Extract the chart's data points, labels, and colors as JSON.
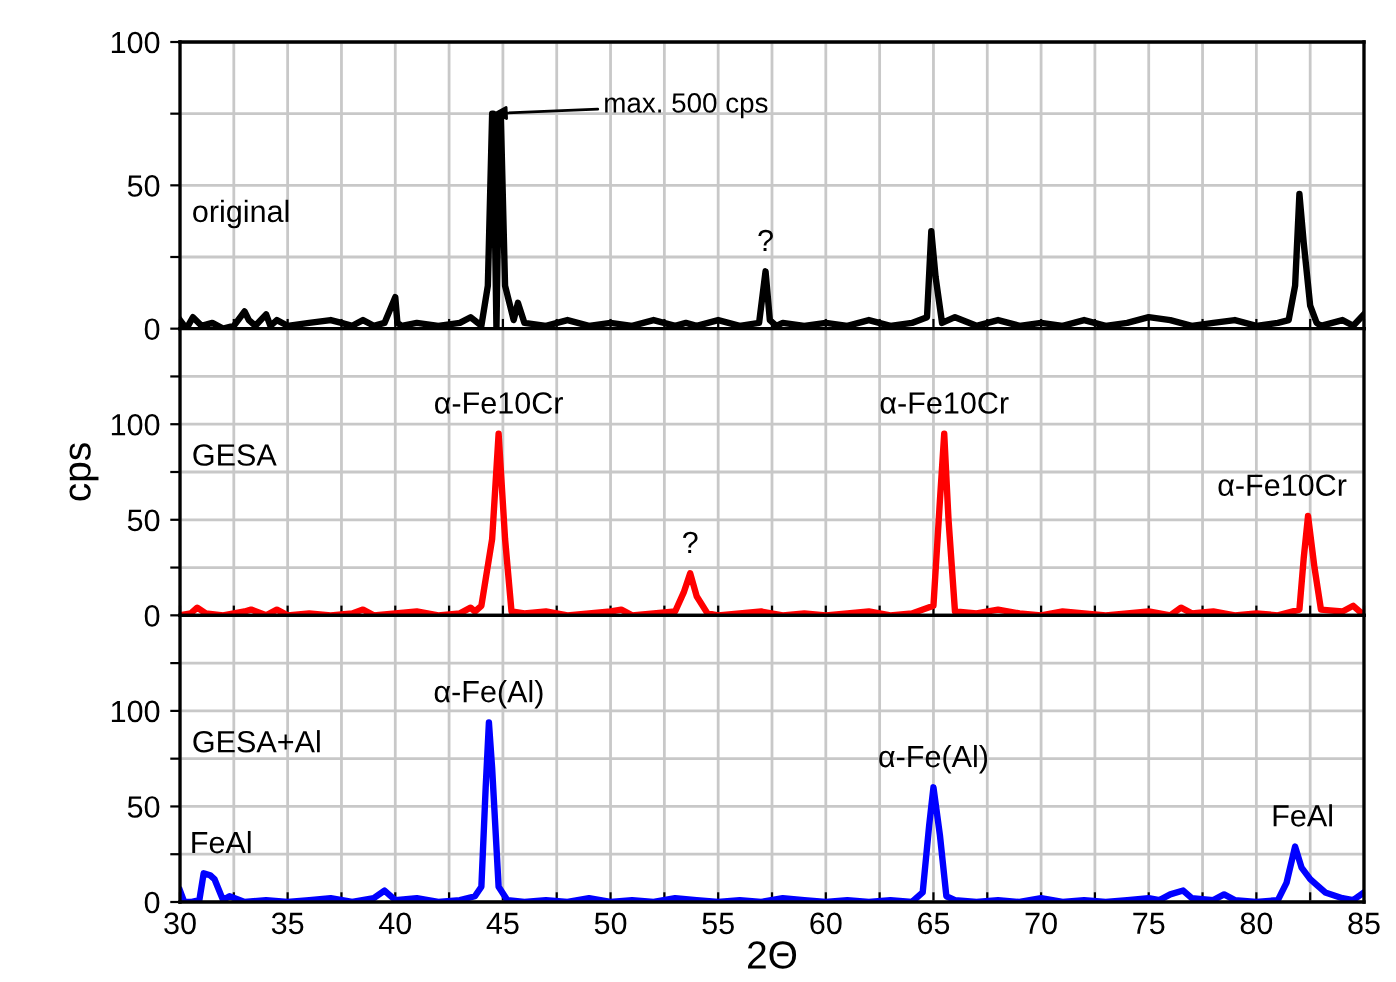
{
  "chart_data": [
    {
      "type": "line",
      "xlim": [
        30,
        85
      ],
      "ylim": [
        0,
        100
      ],
      "yticks": [
        0,
        {
          "value": 25,
          "label": null
        },
        50,
        {
          "value": 75,
          "label": null
        },
        100
      ],
      "xticks": [
        30,
        {
          "value": 32.5,
          "label": null
        },
        35,
        {
          "value": 37.5,
          "label": null
        },
        40,
        {
          "value": 42.5,
          "label": null
        },
        45,
        {
          "value": 47.5,
          "label": null
        },
        50,
        {
          "value": 52.5,
          "label": null
        },
        55,
        {
          "value": 57.5,
          "label": null
        },
        60,
        {
          "value": 62.5,
          "label": null
        },
        65,
        {
          "value": 67.5,
          "label": null
        },
        70,
        {
          "value": 72.5,
          "label": null
        },
        75,
        {
          "value": 77.5,
          "label": null
        },
        80,
        {
          "value": 82.5,
          "label": null
        },
        85
      ],
      "tick_labels": "y",
      "grid": true,
      "series": [
        {
          "name": "original",
          "color": "#000000",
          "x": [
            30,
            30.3,
            30.6,
            31,
            31.5,
            32,
            32.5,
            33,
            33.2,
            33.5,
            34,
            34.2,
            34.5,
            35,
            36,
            37,
            37.5,
            38,
            38.5,
            39,
            39.5,
            40,
            40.1,
            40.3,
            41,
            42,
            43,
            43.5,
            44,
            44.3,
            44.5,
            44.55,
            44.7,
            44.85,
            44.9,
            45.1,
            45.5,
            45.7,
            46,
            47,
            48,
            49,
            50,
            51,
            52,
            53,
            53.5,
            54,
            55,
            56,
            56.9,
            57.2,
            57.4,
            57.7,
            58,
            59,
            60,
            61,
            62,
            63,
            64,
            64.7,
            64.9,
            65.1,
            65.4,
            66,
            67,
            68,
            69,
            70,
            71,
            72,
            73,
            74,
            75,
            76,
            77,
            78,
            79,
            80,
            81,
            81.5,
            81.8,
            82.0,
            82.2,
            82.5,
            82.8,
            83,
            84,
            84.5,
            85
          ],
          "values": [
            3,
            0,
            4,
            1,
            2,
            0,
            1,
            6,
            3,
            1,
            5,
            1,
            3,
            1,
            2,
            3,
            2,
            1,
            3,
            1,
            2,
            11,
            2,
            1,
            2,
            1,
            2,
            4,
            1,
            15,
            75,
            75,
            0,
            75,
            75,
            15,
            3,
            9,
            2,
            1,
            3,
            1,
            2,
            1,
            3,
            1,
            2,
            1,
            3,
            1,
            2,
            20,
            3,
            1,
            2,
            1,
            2,
            1,
            3,
            1,
            2,
            4,
            34,
            18,
            2,
            4,
            1,
            3,
            1,
            2,
            1,
            3,
            1,
            2,
            4,
            3,
            1,
            2,
            3,
            1,
            2,
            3,
            15,
            47,
            30,
            8,
            2,
            1,
            3,
            1,
            5
          ]
        }
      ],
      "annotations": [
        "max. 500 cps",
        {
          "text": "?",
          "x": 57.2,
          "y": 20
        }
      ]
    },
    {
      "type": "line",
      "xlim": [
        30,
        85
      ],
      "ylim": [
        0,
        150
      ],
      "yticks": [
        0,
        {
          "value": 25,
          "label": null
        },
        50,
        {
          "value": 75,
          "label": null
        },
        100,
        {
          "value": 125,
          "label": null
        }
      ],
      "xticks": [
        30,
        {
          "value": 32.5,
          "label": null
        },
        35,
        {
          "value": 37.5,
          "label": null
        },
        40,
        {
          "value": 42.5,
          "label": null
        },
        45,
        {
          "value": 47.5,
          "label": null
        },
        50,
        {
          "value": 52.5,
          "label": null
        },
        55,
        {
          "value": 57.5,
          "label": null
        },
        60,
        {
          "value": 62.5,
          "label": null
        },
        65,
        {
          "value": 67.5,
          "label": null
        },
        70,
        {
          "value": 72.5,
          "label": null
        },
        75,
        {
          "value": 77.5,
          "label": null
        },
        80,
        {
          "value": 82.5,
          "label": null
        },
        85
      ],
      "tick_labels": "y",
      "grid": true,
      "ylabel": "cps",
      "series": [
        {
          "name": "GESA",
          "color": "#ff0000",
          "x": [
            30,
            30.5,
            30.8,
            31.2,
            32,
            33,
            33.3,
            34,
            34.5,
            35,
            36,
            37,
            38,
            38.5,
            39,
            40,
            41,
            42,
            43,
            43.5,
            43.7,
            44,
            44.5,
            44.8,
            45.1,
            45.4,
            46,
            47,
            48,
            49,
            50,
            50.5,
            51,
            52,
            53,
            53.4,
            53.7,
            54,
            54.5,
            55,
            56,
            57,
            58,
            59,
            60,
            61,
            62,
            63,
            64,
            65,
            65.3,
            65.5,
            65.7,
            66,
            67,
            68,
            69,
            70,
            71,
            72,
            73,
            74,
            75,
            76,
            76.5,
            77,
            78,
            79,
            80,
            81,
            82,
            82.2,
            82.4,
            82.7,
            83,
            84,
            84.5,
            85
          ],
          "values": [
            0,
            1,
            4,
            1,
            0,
            2,
            3,
            0,
            3,
            0,
            1,
            0,
            1,
            3,
            0,
            1,
            2,
            0,
            1,
            4,
            2,
            5,
            40,
            95,
            40,
            2,
            1,
            2,
            0,
            1,
            2,
            3,
            0,
            1,
            2,
            12,
            22,
            10,
            1,
            0,
            1,
            2,
            0,
            1,
            0,
            1,
            2,
            0,
            1,
            5,
            60,
            95,
            50,
            2,
            1,
            3,
            1,
            0,
            2,
            1,
            0,
            1,
            2,
            0,
            4,
            1,
            2,
            0,
            1,
            0,
            3,
            30,
            52,
            25,
            3,
            2,
            5,
            0
          ]
        }
      ],
      "annotations": [
        {
          "text": "α-Fe10Cr",
          "x": 44.8,
          "y": 95
        },
        {
          "text": "?",
          "x": 53.7,
          "y": 22
        },
        {
          "text": "α-Fe10Cr",
          "x": 65.5,
          "y": 95
        },
        {
          "text": "α-Fe10Cr",
          "x": 82.4,
          "y": 52
        }
      ]
    },
    {
      "type": "line",
      "xlim": [
        30,
        85
      ],
      "ylim": [
        0,
        150
      ],
      "yticks": [
        0,
        {
          "value": 25,
          "label": null
        },
        50,
        {
          "value": 75,
          "label": null
        },
        100,
        {
          "value": 125,
          "label": null
        }
      ],
      "xticks": [
        30,
        {
          "value": 32.5,
          "label": null
        },
        35,
        {
          "value": 37.5,
          "label": null
        },
        40,
        {
          "value": 42.5,
          "label": null
        },
        45,
        {
          "value": 47.5,
          "label": null
        },
        50,
        {
          "value": 52.5,
          "label": null
        },
        55,
        {
          "value": 57.5,
          "label": null
        },
        60,
        {
          "value": 62.5,
          "label": null
        },
        65,
        {
          "value": 67.5,
          "label": null
        },
        70,
        {
          "value": 72.5,
          "label": null
        },
        75,
        {
          "value": 77.5,
          "label": null
        },
        80,
        {
          "value": 82.5,
          "label": null
        },
        85
      ],
      "grid": true,
      "xlabel": "2Θ",
      "series": [
        {
          "name": "GESA+Al",
          "color": "#0000ff",
          "x": [
            30,
            30.2,
            30.5,
            30.9,
            31.1,
            31.4,
            31.6,
            32,
            32.3,
            33,
            34,
            35,
            36,
            37,
            38,
            39,
            39.5,
            40,
            41,
            42,
            43,
            43.7,
            44,
            44.2,
            44.35,
            44.5,
            44.8,
            45.2,
            46,
            47,
            48,
            49,
            50,
            51,
            52,
            53,
            54,
            55,
            56,
            57,
            58,
            59,
            60,
            61,
            62,
            63,
            64,
            64.5,
            64.8,
            65.0,
            65.3,
            65.6,
            66,
            67,
            68,
            69,
            70,
            71,
            72,
            73,
            74,
            75,
            75.5,
            76,
            76.6,
            77,
            78,
            78.5,
            79,
            80,
            81,
            81.4,
            81.8,
            82.1,
            82.5,
            82.8,
            83.2,
            84,
            84.5,
            85
          ],
          "values": [
            6,
            0,
            0,
            1,
            15,
            14,
            12,
            1,
            3,
            0,
            1,
            0,
            1,
            2,
            0,
            2,
            6,
            1,
            2,
            0,
            1,
            3,
            8,
            60,
            94,
            70,
            8,
            1,
            0,
            1,
            0,
            2,
            0,
            1,
            0,
            2,
            1,
            0,
            1,
            0,
            2,
            1,
            0,
            1,
            0,
            1,
            0,
            5,
            40,
            60,
            35,
            3,
            1,
            0,
            1,
            0,
            2,
            0,
            1,
            0,
            1,
            2,
            1,
            4,
            6,
            2,
            1,
            4,
            1,
            0,
            1,
            10,
            29,
            18,
            12,
            9,
            5,
            2,
            1,
            5
          ]
        }
      ],
      "annotations": [
        {
          "text": "α-Fe(Al)",
          "x": 44.35,
          "y": 94
        },
        {
          "text": "FeAl",
          "x": 31.1,
          "y": 15
        },
        {
          "text": "α-Fe(Al)",
          "x": 65.0,
          "y": 60
        },
        {
          "text": "FeAl",
          "x": 81.8,
          "y": 29
        }
      ]
    }
  ]
}
